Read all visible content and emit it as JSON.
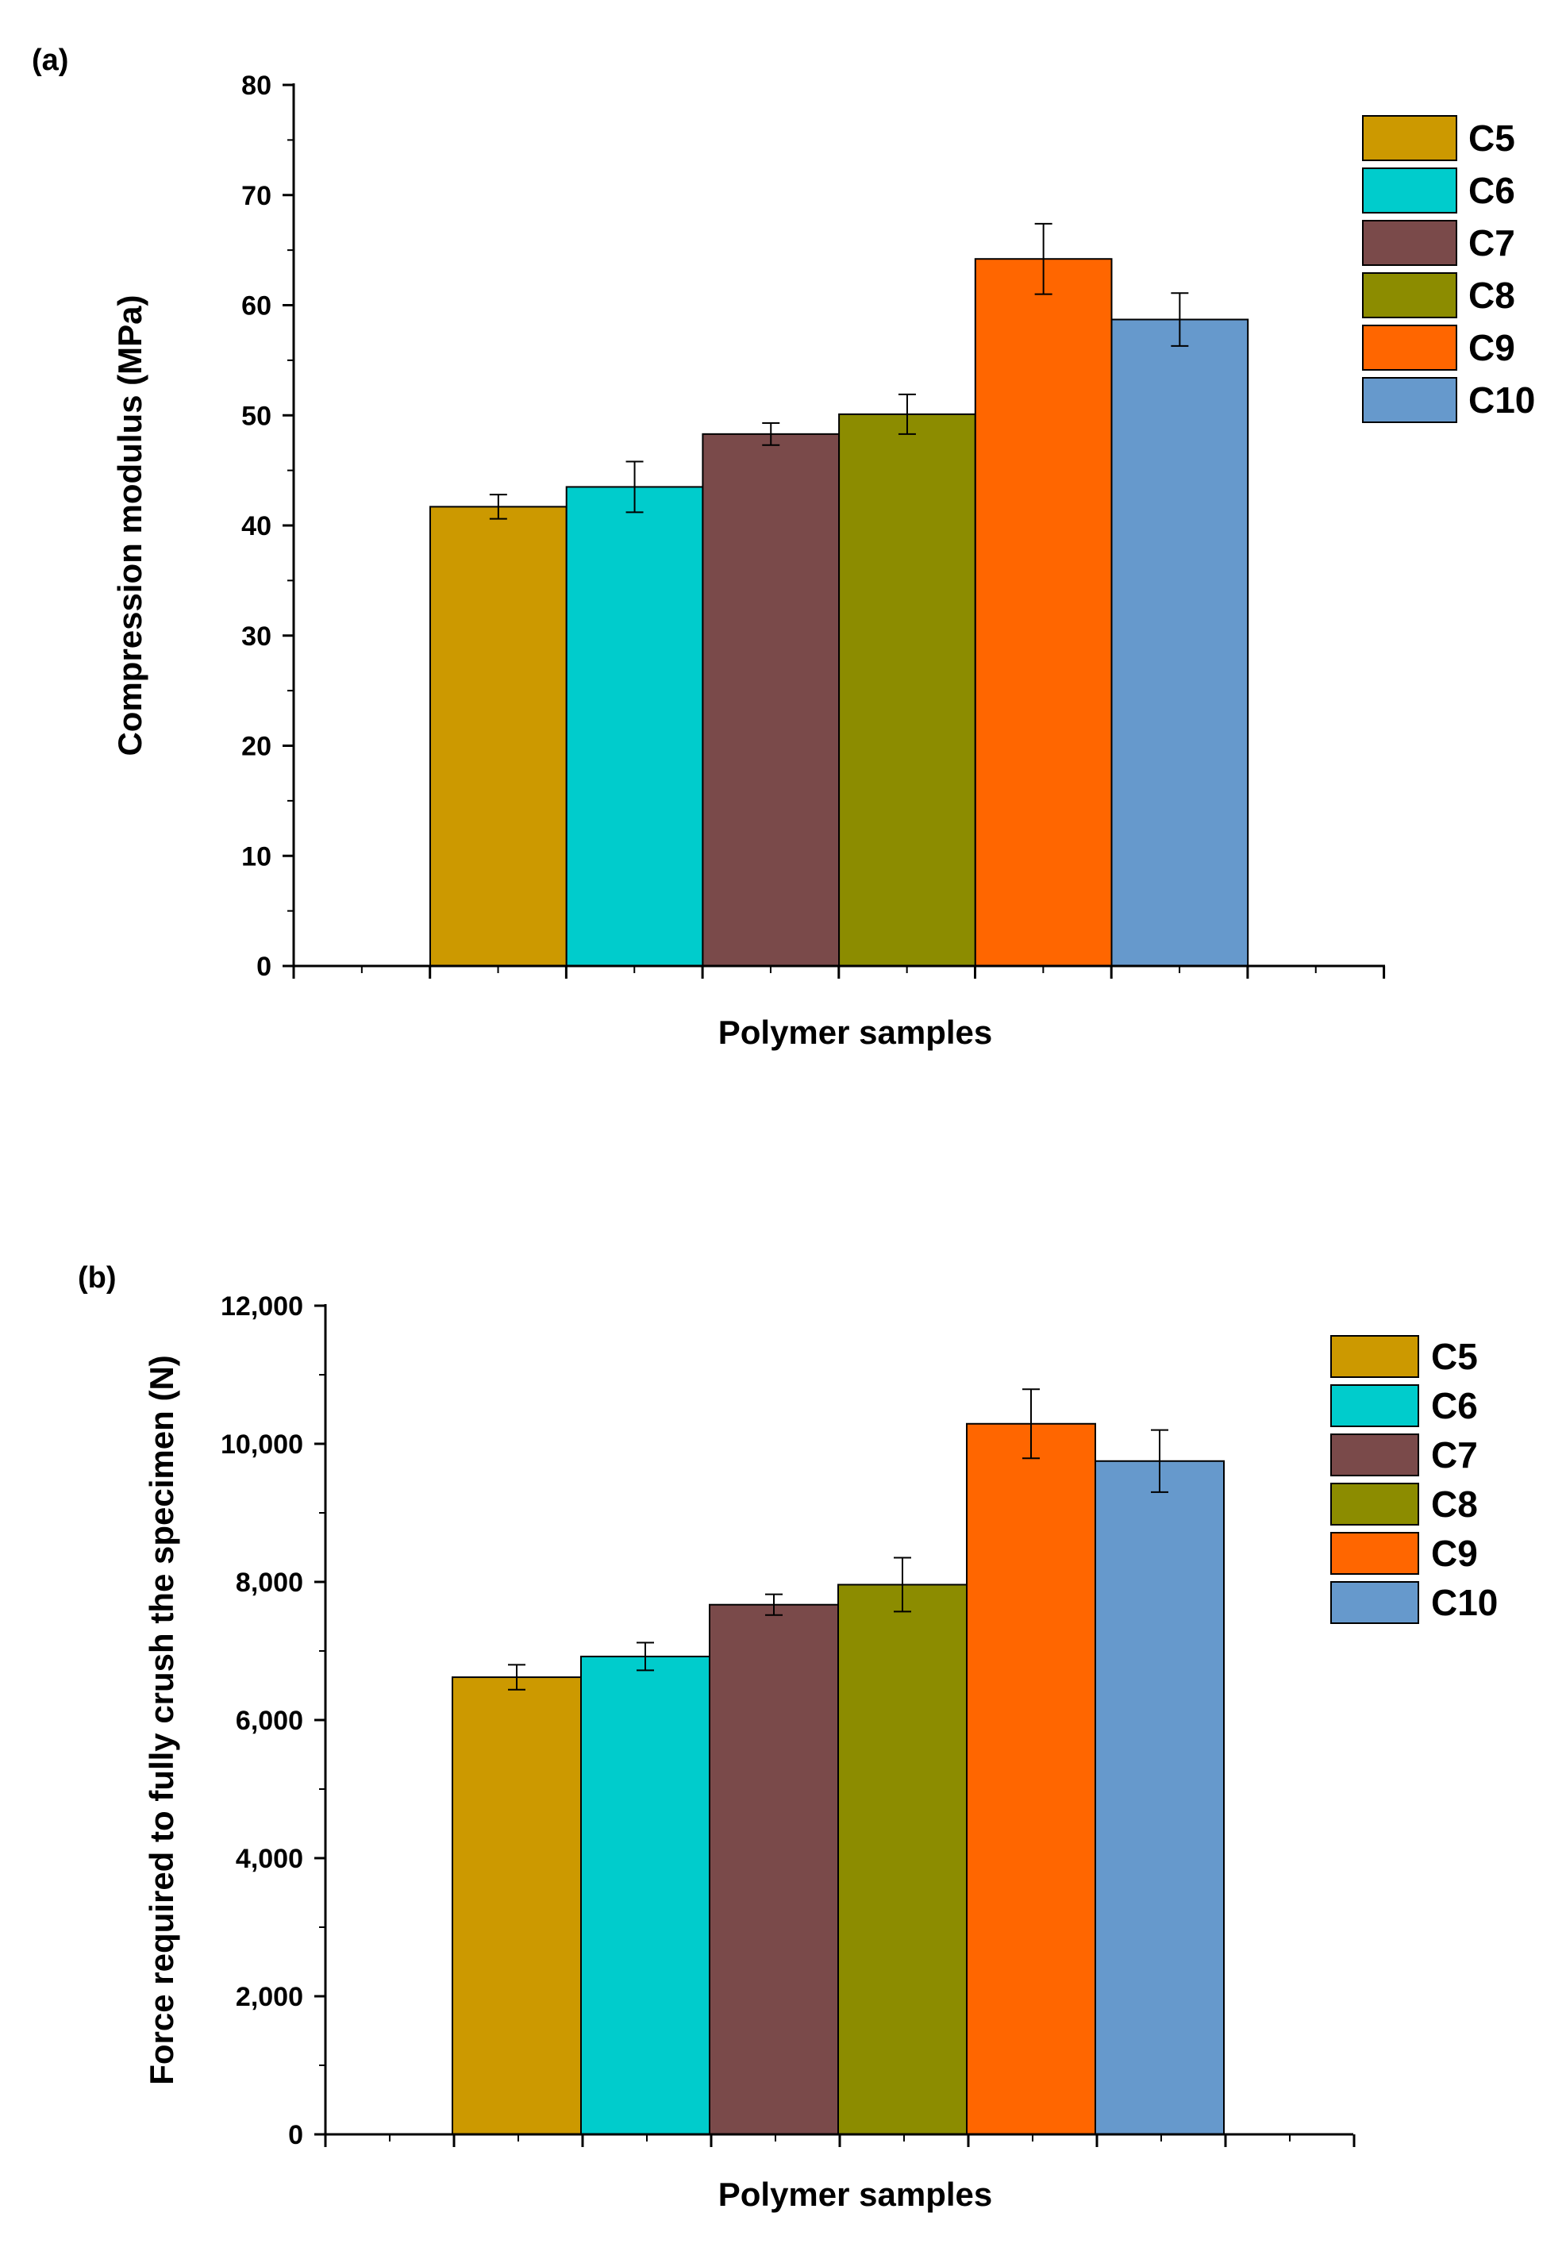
{
  "chart_data": [
    {
      "type": "bar",
      "panel_label": "(a)",
      "categories": [
        "C5",
        "C6",
        "C7",
        "C8",
        "C9",
        "C10"
      ],
      "values": [
        41.7,
        43.5,
        48.3,
        50.1,
        64.2,
        58.7
      ],
      "errors": [
        1.1,
        2.3,
        1.0,
        1.8,
        3.2,
        2.4
      ],
      "colors": [
        "#CC9900",
        "#00CCCC",
        "#7A4A4A",
        "#8C8C00",
        "#FF6600",
        "#6699CC"
      ],
      "ylim": [
        0,
        80
      ],
      "yticks": [
        0,
        10,
        20,
        30,
        40,
        50,
        60,
        70,
        80
      ],
      "ytick_labels": [
        "0",
        "10",
        "20",
        "30",
        "40",
        "50",
        "60",
        "70",
        "80"
      ],
      "xlabel": "Polymer samples",
      "ylabel": "Compression modulus (MPa)",
      "legend": [
        "C5",
        "C6",
        "C7",
        "C8",
        "C9",
        "C10"
      ],
      "legend_position": "top-right"
    },
    {
      "type": "bar",
      "panel_label": "(b)",
      "categories": [
        "C5",
        "C6",
        "C7",
        "C8",
        "C9",
        "C10"
      ],
      "values": [
        6620,
        6920,
        7670,
        7960,
        10290,
        9750
      ],
      "errors": [
        180,
        200,
        150,
        390,
        500,
        450
      ],
      "colors": [
        "#CC9900",
        "#00CCCC",
        "#7A4A4A",
        "#8C8C00",
        "#FF6600",
        "#6699CC"
      ],
      "ylim": [
        0,
        12000
      ],
      "yticks": [
        0,
        2000,
        4000,
        6000,
        8000,
        10000,
        12000
      ],
      "ytick_labels": [
        "0",
        "2,000",
        "4,000",
        "6,000",
        "8,000",
        "10,000",
        "12,000"
      ],
      "xlabel": "Polymer samples",
      "ylabel": "Force required to fully crush the specimen (N)",
      "legend": [
        "C5",
        "C6",
        "C7",
        "C8",
        "C9",
        "C10"
      ],
      "legend_position": "top-right"
    }
  ]
}
